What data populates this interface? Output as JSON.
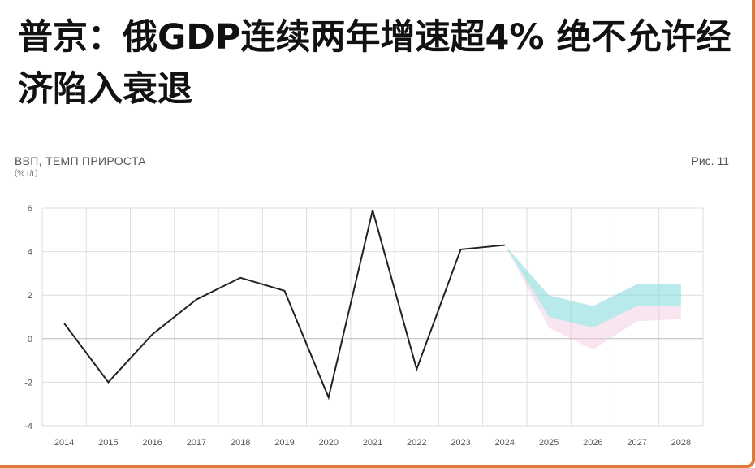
{
  "headline": "普京：俄GDP连续两年增速超4% 绝不允许经济陷入衰退",
  "chart_header": {
    "title": "ВВП, ТЕМП ПРИРОСТА",
    "unit": "(% г/г)",
    "figure_label": "Рис. 11"
  },
  "colors": {
    "line": "#222222",
    "band_upper": "#7fd8d8",
    "band_lower": "#f2c6dd",
    "grid": "#dddddd",
    "frame_accent": "#e07a3a"
  },
  "chart_data": {
    "type": "line",
    "title": "ВВП, ТЕМП ПРИРОСТА",
    "ylabel": "(% г/г)",
    "xlabel": "",
    "categories": [
      "2014",
      "2015",
      "2016",
      "2017",
      "2018",
      "2019",
      "2020",
      "2021",
      "2022",
      "2023",
      "2024",
      "2025",
      "2026",
      "2027",
      "2028"
    ],
    "yticks": [
      6,
      4,
      2,
      0,
      -2,
      -4
    ],
    "ylim": [
      -4,
      6
    ],
    "grid": true,
    "series": [
      {
        "values": [
          0.7,
          -2.0,
          0.2,
          1.8,
          2.8,
          2.2,
          -2.7,
          5.9,
          -1.4,
          4.1,
          4.3,
          null,
          null,
          null,
          null
        ]
      }
    ],
    "forecast_bands": [
      {
        "x": [
          "2024",
          "2025",
          "2026",
          "2027",
          "2028"
        ],
        "upper": [
          4.3,
          2.0,
          1.5,
          2.5,
          2.5
        ],
        "lower": [
          4.3,
          1.0,
          0.5,
          1.5,
          1.5
        ]
      },
      {
        "x": [
          "2024",
          "2025",
          "2026",
          "2027",
          "2028"
        ],
        "upper": [
          4.3,
          1.0,
          0.5,
          1.5,
          1.5
        ],
        "lower": [
          4.3,
          0.5,
          -0.5,
          0.8,
          0.9
        ]
      }
    ]
  }
}
